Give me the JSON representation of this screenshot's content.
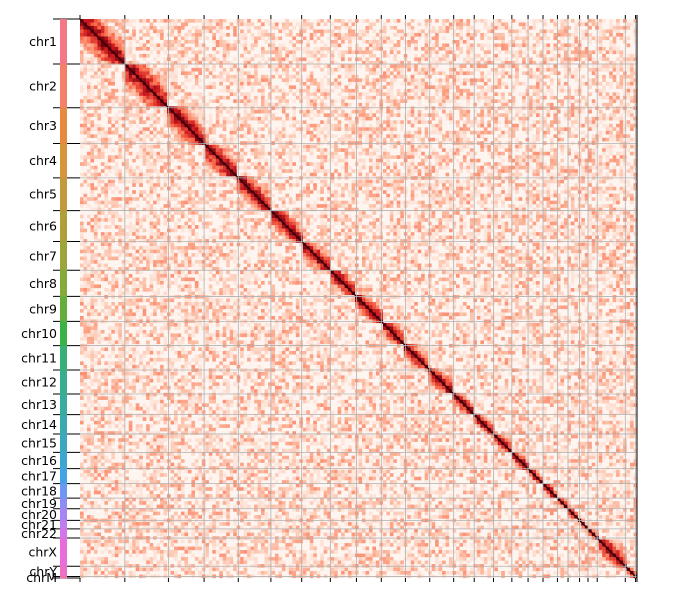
{
  "chart_data": {
    "type": "heatmap",
    "title": "",
    "xlabel": "",
    "ylabel": "",
    "colormap": [
      "#fff5f0",
      "#fcbba1",
      "#fb6a4a",
      "#cb181d",
      "#67000d"
    ],
    "grid": true,
    "chromosomes": [
      {
        "name": "chr1",
        "length": 249,
        "color": "#f37883"
      },
      {
        "name": "chr2",
        "length": 242,
        "color": "#f47f6b"
      },
      {
        "name": "chr3",
        "length": 198,
        "color": "#e68a3f"
      },
      {
        "name": "chr4",
        "length": 190,
        "color": "#d7953a"
      },
      {
        "name": "chr5",
        "length": 181,
        "color": "#c29a3c"
      },
      {
        "name": "chr6",
        "length": 171,
        "color": "#ae9f3b"
      },
      {
        "name": "chr7",
        "length": 159,
        "color": "#9ba53b"
      },
      {
        "name": "chr8",
        "length": 145,
        "color": "#84ab3a"
      },
      {
        "name": "chr9",
        "length": 138,
        "color": "#62b03b"
      },
      {
        "name": "chr10",
        "length": 134,
        "color": "#3bb246"
      },
      {
        "name": "chr11",
        "length": 135,
        "color": "#36b076"
      },
      {
        "name": "chr12",
        "length": 133,
        "color": "#37ae8e"
      },
      {
        "name": "chr13",
        "length": 114,
        "color": "#38ac9f"
      },
      {
        "name": "chr14",
        "length": 107,
        "color": "#39abaf"
      },
      {
        "name": "chr15",
        "length": 102,
        "color": "#3aa9bf"
      },
      {
        "name": "chr16",
        "length": 90,
        "color": "#3ba7d0"
      },
      {
        "name": "chr17",
        "length": 83,
        "color": "#45a2e3"
      },
      {
        "name": "chr18",
        "length": 80,
        "color": "#6c98f1"
      },
      {
        "name": "chr19",
        "length": 59,
        "color": "#8d8ef3"
      },
      {
        "name": "chr20",
        "length": 64,
        "color": "#a785f2"
      },
      {
        "name": "chr21",
        "length": 47,
        "color": "#bf7cf0"
      },
      {
        "name": "chr22",
        "length": 51,
        "color": "#d474e9"
      },
      {
        "name": "chrX",
        "length": 156,
        "color": "#e66edb"
      },
      {
        "name": "chrY",
        "length": 57,
        "color": "#ee6fc6"
      },
      {
        "name": "chrM",
        "length": 8,
        "color": "#f273a5"
      }
    ],
    "x_tick_labels": [],
    "notes_visible": ""
  }
}
